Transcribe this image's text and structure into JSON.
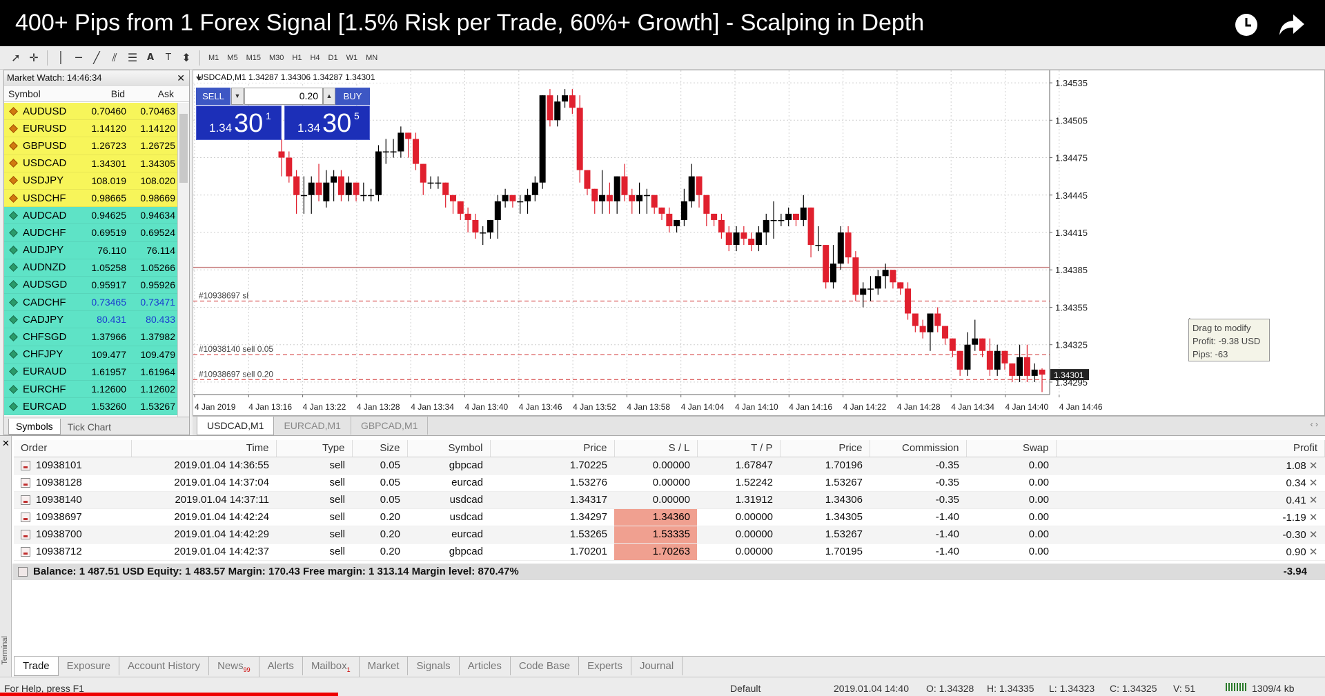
{
  "title": "400+ Pips from 1 Forex Signal [1.5% Risk per Trade, 60%+ Growth] - Scalping in Depth",
  "video_icons": [
    "clock-icon",
    "share-icon"
  ],
  "toolbar": {
    "timeframes": [
      "M1",
      "M5",
      "M15",
      "M30",
      "H1",
      "H4",
      "D1",
      "W1",
      "MN"
    ]
  },
  "market_watch": {
    "header": "Market Watch: 14:46:34",
    "cols": {
      "symbol": "Symbol",
      "bid": "Bid",
      "ask": "Ask"
    },
    "rows": [
      {
        "symbol": "AUDUSD",
        "bid": "0.70460",
        "ask": "0.70463",
        "color": "#f7f55a"
      },
      {
        "symbol": "EURUSD",
        "bid": "1.14120",
        "ask": "1.14120",
        "color": "#f7f55a"
      },
      {
        "symbol": "GBPUSD",
        "bid": "1.26723",
        "ask": "1.26725",
        "color": "#f7f55a"
      },
      {
        "symbol": "USDCAD",
        "bid": "1.34301",
        "ask": "1.34305",
        "color": "#f7f55a"
      },
      {
        "symbol": "USDJPY",
        "bid": "108.019",
        "ask": "108.020",
        "color": "#f7f55a"
      },
      {
        "symbol": "USDCHF",
        "bid": "0.98665",
        "ask": "0.98669",
        "color": "#f7f55a"
      },
      {
        "symbol": "AUDCAD",
        "bid": "0.94625",
        "ask": "0.94634",
        "color": "#5ee3c6"
      },
      {
        "symbol": "AUDCHF",
        "bid": "0.69519",
        "ask": "0.69524",
        "color": "#5ee3c6"
      },
      {
        "symbol": "AUDJPY",
        "bid": "76.110",
        "ask": "76.114",
        "color": "#5ee3c6"
      },
      {
        "symbol": "AUDNZD",
        "bid": "1.05258",
        "ask": "1.05266",
        "color": "#5ee3c6"
      },
      {
        "symbol": "AUDSGD",
        "bid": "0.95917",
        "ask": "0.95926",
        "color": "#5ee3c6"
      },
      {
        "symbol": "CADCHF",
        "bid": "0.73465",
        "ask": "0.73471",
        "color": "#5ee3c6",
        "price_color": "#1a3ccf"
      },
      {
        "symbol": "CADJPY",
        "bid": "80.431",
        "ask": "80.433",
        "color": "#5ee3c6",
        "price_color": "#1a3ccf"
      },
      {
        "symbol": "CHFSGD",
        "bid": "1.37966",
        "ask": "1.37982",
        "color": "#5ee3c6"
      },
      {
        "symbol": "CHFJPY",
        "bid": "109.477",
        "ask": "109.479",
        "color": "#5ee3c6"
      },
      {
        "symbol": "EURAUD",
        "bid": "1.61957",
        "ask": "1.61964",
        "color": "#5ee3c6"
      },
      {
        "symbol": "EURCHF",
        "bid": "1.12600",
        "ask": "1.12602",
        "color": "#5ee3c6"
      },
      {
        "symbol": "EURCAD",
        "bid": "1.53260",
        "ask": "1.53267",
        "color": "#5ee3c6"
      }
    ],
    "tabs": [
      "Symbols",
      "Tick Chart"
    ]
  },
  "chart": {
    "info": "USDCAD,M1  1.34287 1.34306 1.34287 1.34301",
    "trade_panel": {
      "sell_label": "SELL",
      "buy_label": "BUY",
      "lot": "0.20",
      "sell_price_small": "1.34",
      "sell_price_big": "30",
      "sell_price_sup": "1",
      "buy_price_small": "1.34",
      "buy_price_big": "30",
      "buy_price_sup": "5"
    },
    "price_axis": [
      "1.34535",
      "1.34505",
      "1.34475",
      "1.34445",
      "1.34415",
      "1.34385",
      "1.34355",
      "1.34325",
      "1.34295"
    ],
    "current_price": "1.34301",
    "time_axis": [
      "4 Jan 2019",
      "4 Jan 13:16",
      "4 Jan 13:22",
      "4 Jan 13:28",
      "4 Jan 13:34",
      "4 Jan 13:40",
      "4 Jan 13:46",
      "4 Jan 13:52",
      "4 Jan 13:58",
      "4 Jan 14:04",
      "4 Jan 14:10",
      "4 Jan 14:16",
      "4 Jan 14:22",
      "4 Jan 14:28",
      "4 Jan 14:34",
      "4 Jan 14:40",
      "4 Jan 14:46"
    ],
    "level_labels": [
      "#10938697 sl",
      "#10938140 sell 0.05",
      "#10938697 sell 0.20"
    ],
    "tooltip": [
      "Drag to modify",
      "Profit: -9.38 USD",
      "Pips: -63"
    ],
    "tabs": [
      "USDCAD,M1",
      "EURCAD,M1",
      "GBPCAD,M1"
    ]
  },
  "chart_data": {
    "type": "candlestick",
    "symbol": "USDCAD",
    "timeframe": "M1",
    "ylim": [
      1.34285,
      1.34545
    ],
    "xlim": [
      "4 Jan 2019 13:10",
      "4 Jan 2019 14:46"
    ],
    "reference_lines": [
      {
        "label": "#10938697 sl",
        "value": 1.3436,
        "style": "dashed",
        "color": "#d03030"
      },
      {
        "label": "#10938140 sell 0.05",
        "value": 1.34317,
        "style": "dashed",
        "color": "#d03030"
      },
      {
        "label": "#10938697 sell 0.20",
        "value": 1.34297,
        "style": "dashed",
        "color": "#d03030"
      },
      {
        "value": 1.34387,
        "style": "solid",
        "color": "#c88080"
      }
    ],
    "candles": [
      [
        1.3448,
        1.34475,
        1.3449,
        1.3446
      ],
      [
        1.34475,
        1.3446,
        1.3448,
        1.34455
      ],
      [
        1.3446,
        1.34445,
        1.34465,
        1.3443
      ],
      [
        1.34445,
        1.34445,
        1.3446,
        1.3443
      ],
      [
        1.34445,
        1.34455,
        1.3446,
        1.3443
      ],
      [
        1.34455,
        1.34445,
        1.3447,
        1.3444
      ],
      [
        1.3444,
        1.34455,
        1.34465,
        1.34435
      ],
      [
        1.34455,
        1.3446,
        1.34465,
        1.3444
      ],
      [
        1.3446,
        1.34445,
        1.34465,
        1.3444
      ],
      [
        1.34445,
        1.34455,
        1.3446,
        1.3444
      ],
      [
        1.34455,
        1.34445,
        1.34455,
        1.3444
      ],
      [
        1.34445,
        1.34445,
        1.34455,
        1.3444
      ],
      [
        1.34445,
        1.34445,
        1.3445,
        1.3444
      ],
      [
        1.34445,
        1.3448,
        1.34485,
        1.3444
      ],
      [
        1.3448,
        1.3448,
        1.3449,
        1.3447
      ],
      [
        1.3448,
        1.3448,
        1.3449,
        1.34475
      ],
      [
        1.3448,
        1.34495,
        1.345,
        1.34475
      ],
      [
        1.34495,
        1.3449,
        1.34495,
        1.34475
      ],
      [
        1.3449,
        1.3447,
        1.34495,
        1.34465
      ],
      [
        1.3447,
        1.34455,
        1.3447,
        1.34445
      ],
      [
        1.34455,
        1.34455,
        1.3446,
        1.3445
      ],
      [
        1.34455,
        1.34455,
        1.3446,
        1.3445
      ],
      [
        1.34455,
        1.34445,
        1.34455,
        1.34435
      ],
      [
        1.34445,
        1.3444,
        1.34445,
        1.3443
      ],
      [
        1.3444,
        1.3443,
        1.3444,
        1.34425
      ],
      [
        1.3443,
        1.34425,
        1.34435,
        1.34415
      ],
      [
        1.34425,
        1.34415,
        1.3443,
        1.3441
      ],
      [
        1.34415,
        1.34415,
        1.3442,
        1.34405
      ],
      [
        1.34415,
        1.34425,
        1.34425,
        1.3441
      ],
      [
        1.34425,
        1.3444,
        1.34445,
        1.3441
      ],
      [
        1.3444,
        1.34445,
        1.3445,
        1.34435
      ],
      [
        1.34445,
        1.3444,
        1.34445,
        1.34435
      ],
      [
        1.3444,
        1.3444,
        1.34445,
        1.3443
      ],
      [
        1.3444,
        1.34445,
        1.3445,
        1.3443
      ],
      [
        1.34445,
        1.34455,
        1.3446,
        1.3444
      ],
      [
        1.34455,
        1.34525,
        1.34525,
        1.3445
      ],
      [
        1.34525,
        1.34505,
        1.3453,
        1.345
      ],
      [
        1.34505,
        1.3452,
        1.34525,
        1.345
      ],
      [
        1.3452,
        1.34525,
        1.3453,
        1.34515
      ],
      [
        1.34525,
        1.34515,
        1.3453,
        1.3451
      ],
      [
        1.34515,
        1.34465,
        1.34525,
        1.34455
      ],
      [
        1.34465,
        1.3445,
        1.34465,
        1.34445
      ],
      [
        1.3445,
        1.3444,
        1.3445,
        1.3443
      ],
      [
        1.3444,
        1.34445,
        1.34465,
        1.3443
      ],
      [
        1.34445,
        1.3444,
        1.34455,
        1.3443
      ],
      [
        1.3444,
        1.3446,
        1.3446,
        1.3443
      ],
      [
        1.3446,
        1.34445,
        1.3447,
        1.3444
      ],
      [
        1.34445,
        1.3444,
        1.3445,
        1.3443
      ],
      [
        1.3444,
        1.34445,
        1.34455,
        1.3443
      ],
      [
        1.34445,
        1.34445,
        1.3445,
        1.3443
      ],
      [
        1.34445,
        1.34435,
        1.34445,
        1.3443
      ],
      [
        1.34435,
        1.3443,
        1.34435,
        1.34425
      ],
      [
        1.3443,
        1.3442,
        1.34435,
        1.34415
      ],
      [
        1.3442,
        1.34425,
        1.34425,
        1.34415
      ],
      [
        1.34425,
        1.3444,
        1.3445,
        1.3442
      ],
      [
        1.3444,
        1.3446,
        1.3447,
        1.34435
      ],
      [
        1.3446,
        1.34445,
        1.3446,
        1.34435
      ],
      [
        1.34445,
        1.3443,
        1.34445,
        1.3442
      ],
      [
        1.3443,
        1.34425,
        1.3443,
        1.3442
      ],
      [
        1.34425,
        1.34415,
        1.3443,
        1.3441
      ],
      [
        1.34415,
        1.34405,
        1.3442,
        1.344
      ],
      [
        1.34405,
        1.34415,
        1.3442,
        1.344
      ],
      [
        1.34415,
        1.3441,
        1.3442,
        1.34405
      ],
      [
        1.3441,
        1.34405,
        1.34415,
        1.344
      ],
      [
        1.34405,
        1.34415,
        1.3442,
        1.344
      ],
      [
        1.34415,
        1.34425,
        1.3443,
        1.34405
      ],
      [
        1.34425,
        1.34425,
        1.3444,
        1.3441
      ],
      [
        1.34425,
        1.34425,
        1.3443,
        1.3442
      ],
      [
        1.34425,
        1.3443,
        1.34435,
        1.3442
      ],
      [
        1.3443,
        1.34425,
        1.3443,
        1.3442
      ],
      [
        1.34425,
        1.34435,
        1.34445,
        1.3442
      ],
      [
        1.34435,
        1.34405,
        1.34435,
        1.34395
      ],
      [
        1.34405,
        1.34405,
        1.3442,
        1.344
      ],
      [
        1.34405,
        1.34375,
        1.34405,
        1.3437
      ],
      [
        1.34375,
        1.3439,
        1.34405,
        1.3437
      ],
      [
        1.3439,
        1.34415,
        1.3442,
        1.34385
      ],
      [
        1.34415,
        1.34395,
        1.3442,
        1.3439
      ],
      [
        1.34395,
        1.34365,
        1.344,
        1.3436
      ],
      [
        1.34365,
        1.3437,
        1.34375,
        1.34355
      ],
      [
        1.3437,
        1.3437,
        1.3438,
        1.3436
      ],
      [
        1.3437,
        1.3438,
        1.34385,
        1.34365
      ],
      [
        1.3438,
        1.34385,
        1.3439,
        1.3437
      ],
      [
        1.34385,
        1.34375,
        1.34385,
        1.3437
      ],
      [
        1.34375,
        1.3437,
        1.34375,
        1.34365
      ],
      [
        1.3437,
        1.3435,
        1.34375,
        1.34345
      ],
      [
        1.3435,
        1.3434,
        1.3435,
        1.34335
      ],
      [
        1.3434,
        1.34335,
        1.34345,
        1.3433
      ],
      [
        1.34335,
        1.3435,
        1.3435,
        1.3432
      ],
      [
        1.3435,
        1.3434,
        1.34355,
        1.34335
      ],
      [
        1.3434,
        1.3433,
        1.3434,
        1.34325
      ],
      [
        1.3433,
        1.3432,
        1.3433,
        1.34315
      ],
      [
        1.3432,
        1.34305,
        1.3432,
        1.343
      ],
      [
        1.34305,
        1.34325,
        1.34335,
        1.343
      ],
      [
        1.34325,
        1.3433,
        1.34345,
        1.3432
      ],
      [
        1.3433,
        1.3432,
        1.3433,
        1.34315
      ],
      [
        1.3432,
        1.34305,
        1.3433,
        1.343
      ],
      [
        1.34305,
        1.3432,
        1.34325,
        1.343
      ],
      [
        1.3432,
        1.3431,
        1.3432,
        1.34305
      ],
      [
        1.3431,
        1.343,
        1.3431,
        1.34295
      ],
      [
        1.343,
        1.34315,
        1.34325,
        1.34295
      ],
      [
        1.34315,
        1.343,
        1.34325,
        1.34295
      ],
      [
        1.343,
        1.34305,
        1.3431,
        1.34295
      ],
      [
        1.34305,
        1.34301,
        1.34306,
        1.34287
      ]
    ]
  },
  "orders": {
    "cols": [
      "Order",
      "Time",
      "Type",
      "Size",
      "Symbol",
      "Price",
      "S / L",
      "T / P",
      "Price",
      "Commission",
      "Swap",
      "Profit"
    ],
    "rows": [
      {
        "order": "10938101",
        "time": "2019.01.04 14:36:55",
        "type": "sell",
        "size": "0.05",
        "symbol": "gbpcad",
        "price": "1.70225",
        "sl": "0.00000",
        "tp": "1.67847",
        "cur": "1.70196",
        "comm": "-0.35",
        "swap": "0.00",
        "profit": "1.08",
        "sl_hl": false
      },
      {
        "order": "10938128",
        "time": "2019.01.04 14:37:04",
        "type": "sell",
        "size": "0.05",
        "symbol": "eurcad",
        "price": "1.53276",
        "sl": "0.00000",
        "tp": "1.52242",
        "cur": "1.53267",
        "comm": "-0.35",
        "swap": "0.00",
        "profit": "0.34",
        "sl_hl": false
      },
      {
        "order": "10938140",
        "time": "2019.01.04 14:37:11",
        "type": "sell",
        "size": "0.05",
        "symbol": "usdcad",
        "price": "1.34317",
        "sl": "0.00000",
        "tp": "1.31912",
        "cur": "1.34306",
        "comm": "-0.35",
        "swap": "0.00",
        "profit": "0.41",
        "sl_hl": false
      },
      {
        "order": "10938697",
        "time": "2019.01.04 14:42:24",
        "type": "sell",
        "size": "0.20",
        "symbol": "usdcad",
        "price": "1.34297",
        "sl": "1.34360",
        "tp": "0.00000",
        "cur": "1.34305",
        "comm": "-1.40",
        "swap": "0.00",
        "profit": "-1.19",
        "sl_hl": true
      },
      {
        "order": "10938700",
        "time": "2019.01.04 14:42:29",
        "type": "sell",
        "size": "0.20",
        "symbol": "eurcad",
        "price": "1.53265",
        "sl": "1.53335",
        "tp": "0.00000",
        "cur": "1.53267",
        "comm": "-1.40",
        "swap": "0.00",
        "profit": "-0.30",
        "sl_hl": true
      },
      {
        "order": "10938712",
        "time": "2019.01.04 14:42:37",
        "type": "sell",
        "size": "0.20",
        "symbol": "gbpcad",
        "price": "1.70201",
        "sl": "1.70263",
        "tp": "0.00000",
        "cur": "1.70195",
        "comm": "-1.40",
        "swap": "0.00",
        "profit": "0.90",
        "sl_hl": true
      }
    ],
    "balance_line": "Balance: 1 487.51 USD  Equity: 1 483.57  Margin: 170.43  Free margin: 1 313.14  Margin level: 870.47%",
    "total_profit": "-3.94"
  },
  "terminal": {
    "side_label": "Terminal",
    "tabs": [
      {
        "label": "Trade",
        "badge": ""
      },
      {
        "label": "Exposure",
        "badge": ""
      },
      {
        "label": "Account History",
        "badge": ""
      },
      {
        "label": "News",
        "badge": "99"
      },
      {
        "label": "Alerts",
        "badge": ""
      },
      {
        "label": "Mailbox",
        "badge": "1"
      },
      {
        "label": "Market",
        "badge": ""
      },
      {
        "label": "Signals",
        "badge": ""
      },
      {
        "label": "Articles",
        "badge": ""
      },
      {
        "label": "Code Base",
        "badge": ""
      },
      {
        "label": "Experts",
        "badge": ""
      },
      {
        "label": "Journal",
        "badge": ""
      }
    ]
  },
  "status": {
    "help": "For Help, press F1",
    "profile": "Default",
    "datetime": "2019.01.04 14:40",
    "open": "O: 1.34328",
    "high": "H: 1.34335",
    "low": "L: 1.34323",
    "close": "C: 1.34325",
    "volume": "V: 51",
    "traffic": "1309/4 kb"
  },
  "colors": {
    "bull": "#000000",
    "bear": "#e0202e",
    "trade_blue": "#1c2fb8"
  }
}
